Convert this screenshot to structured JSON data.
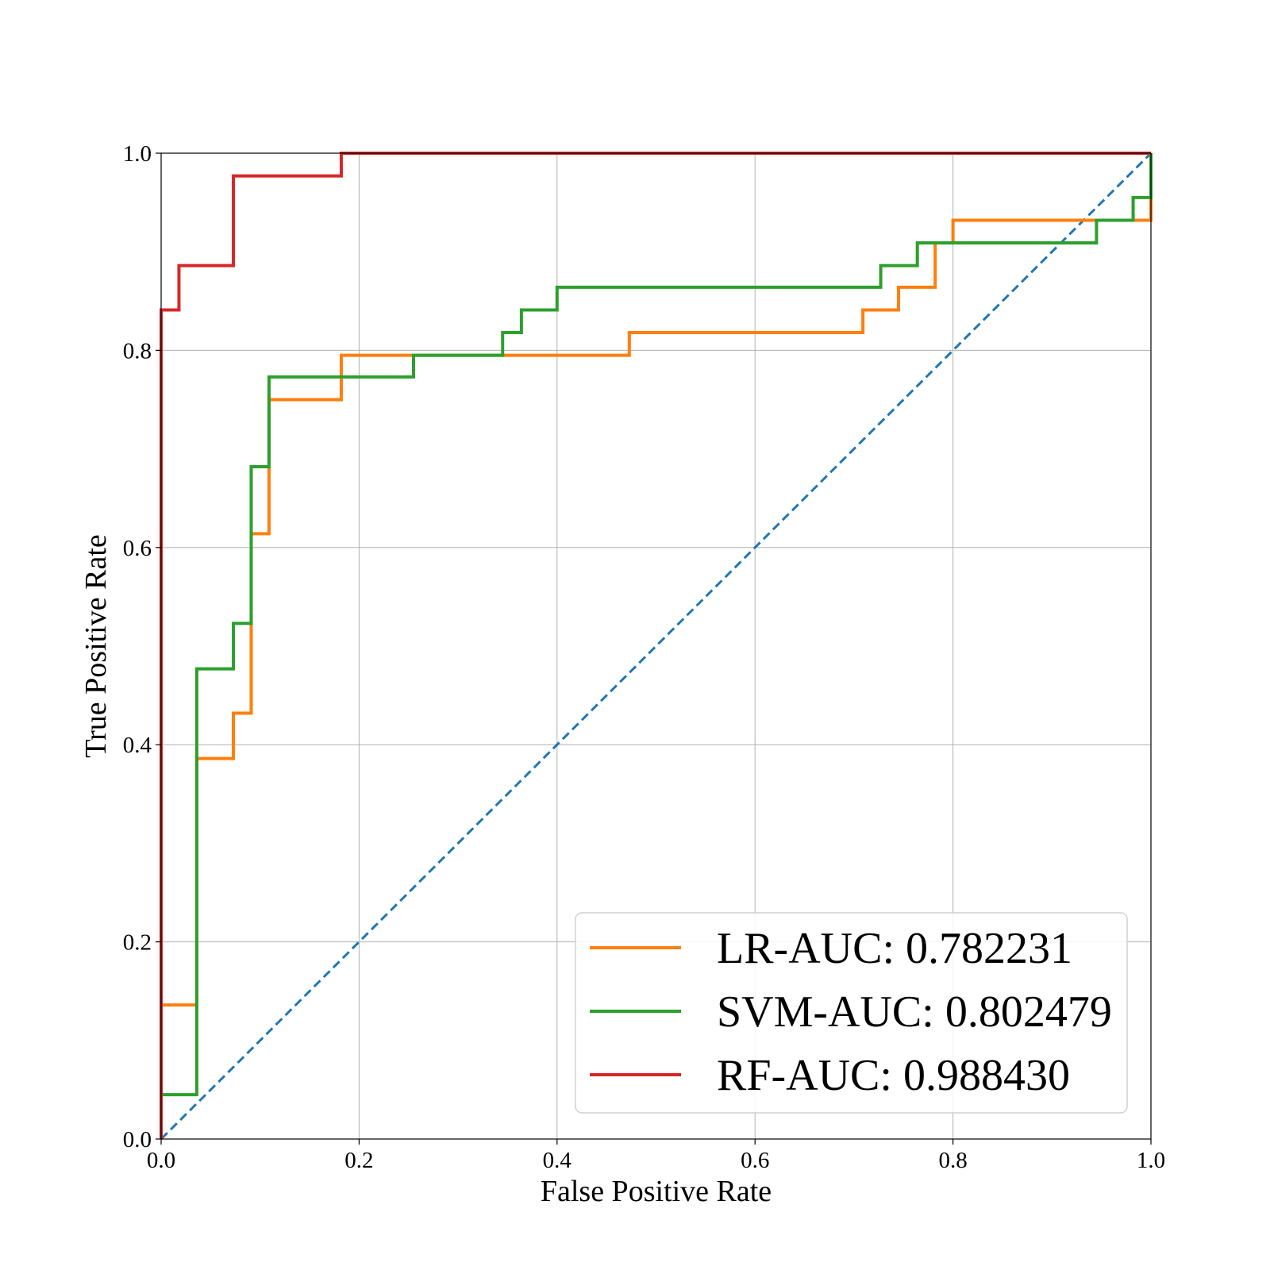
{
  "chart_data": {
    "type": "line",
    "title": "",
    "xlabel": "False Positive Rate",
    "ylabel": "True Positive Rate",
    "xlim": [
      0.0,
      1.0
    ],
    "ylim": [
      0.0,
      1.0
    ],
    "xticks": [
      "0.0",
      "0.2",
      "0.4",
      "0.6",
      "0.8",
      "1.0"
    ],
    "yticks": [
      "0.0",
      "0.2",
      "0.4",
      "0.6",
      "0.8",
      "1.0"
    ],
    "grid": true,
    "legend_position": "bottom-right",
    "series": [
      {
        "name": "LR-AUC: 0.782231",
        "color": "#ff7f0e",
        "x": [
          0.0,
          0.0,
          0.036,
          0.036,
          0.073,
          0.073,
          0.091,
          0.091,
          0.109,
          0.109,
          0.182,
          0.182,
          0.473,
          0.473,
          0.709,
          0.709,
          0.745,
          0.745,
          0.782,
          0.782,
          0.8,
          0.8,
          1.0,
          1.0
        ],
        "y": [
          0.0,
          0.136,
          0.136,
          0.386,
          0.386,
          0.432,
          0.432,
          0.614,
          0.614,
          0.75,
          0.75,
          0.795,
          0.795,
          0.818,
          0.818,
          0.841,
          0.841,
          0.864,
          0.864,
          0.909,
          0.909,
          0.932,
          0.932,
          1.0
        ]
      },
      {
        "name": "SVM-AUC: 0.802479",
        "color": "#2ca02c",
        "x": [
          0.0,
          0.0,
          0.036,
          0.036,
          0.073,
          0.073,
          0.091,
          0.091,
          0.109,
          0.109,
          0.255,
          0.255,
          0.345,
          0.345,
          0.364,
          0.364,
          0.4,
          0.4,
          0.727,
          0.727,
          0.764,
          0.764,
          0.945,
          0.945,
          0.982,
          0.982,
          1.0,
          1.0
        ],
        "y": [
          0.0,
          0.045,
          0.045,
          0.477,
          0.477,
          0.523,
          0.523,
          0.682,
          0.682,
          0.773,
          0.773,
          0.795,
          0.795,
          0.818,
          0.818,
          0.841,
          0.841,
          0.864,
          0.864,
          0.886,
          0.886,
          0.909,
          0.909,
          0.932,
          0.932,
          0.955,
          0.955,
          1.0
        ]
      },
      {
        "name": "RF-AUC: 0.988430",
        "color": "#d62728",
        "x": [
          0.0,
          0.0,
          0.018,
          0.018,
          0.073,
          0.073,
          0.182,
          0.182,
          1.0
        ],
        "y": [
          0.0,
          0.841,
          0.841,
          0.886,
          0.886,
          0.977,
          0.977,
          1.0,
          1.0
        ]
      }
    ],
    "reference_line": {
      "color": "#1f77b4",
      "style": "dashed",
      "x": [
        0.0,
        1.0
      ],
      "y": [
        0.0,
        1.0
      ]
    }
  }
}
